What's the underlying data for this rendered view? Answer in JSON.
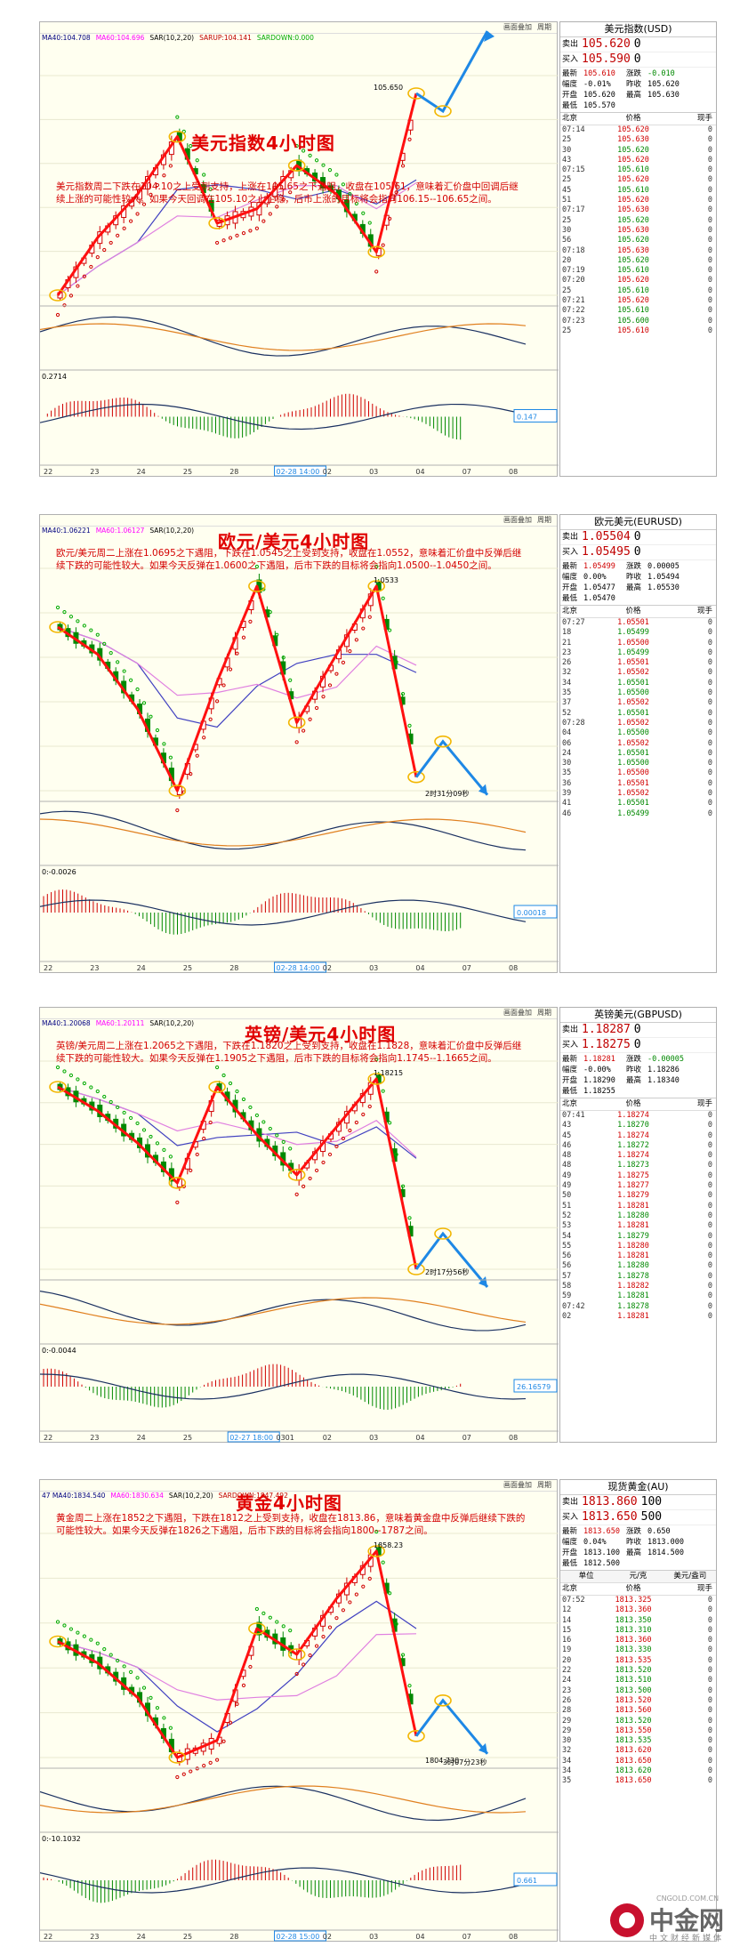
{
  "panels": [
    {
      "id": "usd",
      "title": "美元指数4小时图",
      "note": "美元指数周二下跌在104.10之上受到支持，上涨在105.65之下遇阻，收盘在105.61，意味着汇价盘中回调后继续上涨的可能性较大。如果今天回调在105.10之上企稳，后市上涨的目标将会指向106.15--106.65之间。",
      "topbar": [
        "画面叠加",
        "周期"
      ],
      "indicators": [
        "MA40:104.708",
        "MA60:104.696",
        "SAR(10,2,20)",
        "SARUP:104.141",
        "SARDOWN:0.000"
      ],
      "x_labels": [
        "22",
        "23",
        "24",
        "25",
        "28",
        "02-28 14:00",
        "02",
        "03",
        "04",
        "07",
        "08"
      ],
      "price_labels": [
        "105.650"
      ],
      "macd_label": "0.2714",
      "macd_value_box": "0.147",
      "side": {
        "title": "美元指数(USD)",
        "sell_label": "卖出",
        "sell": "105.620",
        "sell_vol": "0",
        "buy_label": "买入",
        "buy": "105.590",
        "buy_vol": "0",
        "stats": [
          [
            "最新",
            "105.610",
            "涨跌",
            "-0.010"
          ],
          [
            "幅度",
            "-0.01%",
            "昨收",
            "105.620"
          ],
          [
            "开盘",
            "105.620",
            "最高",
            "105.630"
          ],
          [
            "最低",
            "105.570",
            "",
            ""
          ]
        ],
        "tick_header": [
          "北京",
          "价格",
          "现手"
        ],
        "ticks": [
          [
            "07:14",
            "105.620",
            "0"
          ],
          [
            "25",
            "105.630",
            "0"
          ],
          [
            "30",
            "105.620",
            "0"
          ],
          [
            "43",
            "105.620",
            "0"
          ],
          [
            "07:15",
            "105.610",
            "0"
          ],
          [
            "25",
            "105.620",
            "0"
          ],
          [
            "45",
            "105.610",
            "0"
          ],
          [
            "51",
            "105.620",
            "0"
          ],
          [
            "07:17",
            "105.630",
            "0"
          ],
          [
            "25",
            "105.620",
            "0"
          ],
          [
            "30",
            "105.630",
            "0"
          ],
          [
            "56",
            "105.620",
            "0"
          ],
          [
            "07:18",
            "105.630",
            "0"
          ],
          [
            "20",
            "105.620",
            "0"
          ],
          [
            "07:19",
            "105.610",
            "0"
          ],
          [
            "07:20",
            "105.620",
            "0"
          ],
          [
            "25",
            "105.610",
            "0"
          ],
          [
            "07:21",
            "105.620",
            "0"
          ],
          [
            "07:22",
            "105.610",
            "0"
          ],
          [
            "07:23",
            "105.600",
            "0"
          ],
          [
            "25",
            "105.610",
            "0"
          ]
        ]
      }
    },
    {
      "id": "eur",
      "title": "欧元/美元4小时图",
      "note": "欧元/美元周二上涨在1.0695之下遇阻，下跌在1.0545之上受到支持，收盘在1.0552，意味着汇价盘中反弹后继续下跌的可能性较大。如果今天反弹在1.0600之下遇阻，后市下跌的目标将会指向1.0500--1.0450之间。",
      "topbar": [
        "画面叠加",
        "周期"
      ],
      "indicators": [
        "MA40:1.06221",
        "MA60:1.06127",
        "SAR(10,2,20)"
      ],
      "x_labels": [
        "22",
        "23",
        "24",
        "25",
        "28",
        "02-28 14:00",
        "02",
        "03",
        "04",
        "07",
        "08"
      ],
      "price_labels": [
        "1.0533",
        "2时31分09秒"
      ],
      "macd_label": "0:-0.0026",
      "macd_value_box": "0.00018",
      "side": {
        "title": "欧元美元(EURUSD)",
        "sell_label": "卖出",
        "sell": "1.05504",
        "sell_vol": "0",
        "buy_label": "买入",
        "buy": "1.05495",
        "buy_vol": "0",
        "stats": [
          [
            "最新",
            "1.05499",
            "涨跌",
            "0.00005"
          ],
          [
            "幅度",
            "0.00%",
            "昨收",
            "1.05494"
          ],
          [
            "开盘",
            "1.05477",
            "最高",
            "1.05530"
          ],
          [
            "最低",
            "1.05470",
            "",
            ""
          ]
        ],
        "tick_header": [
          "北京",
          "价格",
          "现手"
        ],
        "ticks": [
          [
            "07:27",
            "1.05501",
            "0"
          ],
          [
            "18",
            "1.05499",
            "0"
          ],
          [
            "21",
            "1.05500",
            "0"
          ],
          [
            "23",
            "1.05499",
            "0"
          ],
          [
            "26",
            "1.05501",
            "0"
          ],
          [
            "32",
            "1.05502",
            "0"
          ],
          [
            "34",
            "1.05501",
            "0"
          ],
          [
            "35",
            "1.05500",
            "0"
          ],
          [
            "37",
            "1.05502",
            "0"
          ],
          [
            "52",
            "1.05501",
            "0"
          ],
          [
            "07:28",
            "1.05502",
            "0"
          ],
          [
            "04",
            "1.05500",
            "0"
          ],
          [
            "06",
            "1.05502",
            "0"
          ],
          [
            "24",
            "1.05501",
            "0"
          ],
          [
            "30",
            "1.05500",
            "0"
          ],
          [
            "35",
            "1.05500",
            "0"
          ],
          [
            "36",
            "1.05501",
            "0"
          ],
          [
            "39",
            "1.05502",
            "0"
          ],
          [
            "41",
            "1.05501",
            "0"
          ],
          [
            "46",
            "1.05499",
            "0"
          ]
        ]
      }
    },
    {
      "id": "gbp",
      "title": "英镑/美元4小时图",
      "note": "英镑/美元周二上涨在1.2065之下遇阻，下跌在1.1820之上受到支持，收盘在1.1828，意味着汇价盘中反弹后继续下跌的可能性较大。如果今天反弹在1.1905之下遇阻，后市下跌的目标将会指向1.1745--1.1665之间。",
      "topbar": [
        "画面叠加",
        "周期"
      ],
      "indicators": [
        "MA40:1.20068",
        "MA60:1.20111",
        "SAR(10,2,20)"
      ],
      "x_labels": [
        "22",
        "23",
        "24",
        "25",
        "02-27 18:00",
        "0301",
        "02",
        "03",
        "04",
        "07",
        "08"
      ],
      "price_labels": [
        "1.18215",
        "2时17分56秒"
      ],
      "macd_label": "0:-0.0044",
      "macd_value_box": "26.16579",
      "side": {
        "title": "英镑美元(GBPUSD)",
        "sell_label": "卖出",
        "sell": "1.18287",
        "sell_vol": "0",
        "buy_label": "买入",
        "buy": "1.18275",
        "buy_vol": "0",
        "stats": [
          [
            "最新",
            "1.18281",
            "涨跌",
            "-0.00005"
          ],
          [
            "幅度",
            "-0.00%",
            "昨收",
            "1.18286"
          ],
          [
            "开盘",
            "1.18290",
            "最高",
            "1.18340"
          ],
          [
            "最低",
            "1.18255",
            "",
            ""
          ]
        ],
        "tick_header": [
          "北京",
          "价格",
          "现手"
        ],
        "ticks": [
          [
            "07:41",
            "1.18274",
            "0"
          ],
          [
            "43",
            "1.18270",
            "0"
          ],
          [
            "45",
            "1.18274",
            "0"
          ],
          [
            "46",
            "1.18272",
            "0"
          ],
          [
            "48",
            "1.18274",
            "0"
          ],
          [
            "48",
            "1.18273",
            "0"
          ],
          [
            "49",
            "1.18275",
            "0"
          ],
          [
            "49",
            "1.18277",
            "0"
          ],
          [
            "50",
            "1.18279",
            "0"
          ],
          [
            "51",
            "1.18281",
            "0"
          ],
          [
            "52",
            "1.18280",
            "0"
          ],
          [
            "53",
            "1.18281",
            "0"
          ],
          [
            "54",
            "1.18279",
            "0"
          ],
          [
            "55",
            "1.18280",
            "0"
          ],
          [
            "56",
            "1.18281",
            "0"
          ],
          [
            "56",
            "1.18280",
            "0"
          ],
          [
            "57",
            "1.18278",
            "0"
          ],
          [
            "58",
            "1.18282",
            "0"
          ],
          [
            "59",
            "1.18281",
            "0"
          ],
          [
            "07:42",
            "1.18278",
            "0"
          ],
          [
            "02",
            "1.18281",
            "0"
          ]
        ]
      }
    },
    {
      "id": "xau",
      "title": "黄金4小时图",
      "note": "黄金周二上涨在1852之下遇阻，下跌在1812之上受到支持，收盘在1813.86，意味着黄金盘中反弹后继续下跌的可能性较大。如果今天反弹在1826之下遇阻，后市下跌的目标将会指向1800--1787之间。",
      "topbar": [
        "画面叠加",
        "周期"
      ],
      "indicators": [
        "47 MA40:1834.540",
        "MA60:1830.634",
        "SAR(10,2,20)",
        "SARDOWN:1847.492"
      ],
      "x_labels": [
        "22",
        "23",
        "24",
        "25",
        "28",
        "02-28 15:00",
        "02",
        "03",
        "04",
        "07",
        "08"
      ],
      "price_labels": [
        "1858.23",
        "1804.730",
        "3时07分23秒"
      ],
      "macd_label": "0:-10.1032",
      "macd_value_box": "0.661",
      "side": {
        "title": "现货黄金(AU)",
        "sell_label": "卖出",
        "sell": "1813.860",
        "sell_vol": "100",
        "buy_label": "买入",
        "buy": "1813.650",
        "buy_vol": "500",
        "stats": [
          [
            "最新",
            "1813.650",
            "涨跌",
            "0.650"
          ],
          [
            "幅度",
            "0.04%",
            "昨收",
            "1813.000"
          ],
          [
            "开盘",
            "1813.100",
            "最高",
            "1814.500"
          ],
          [
            "最低",
            "1812.500",
            "",
            ""
          ]
        ],
        "unit_row": [
          "单位",
          "元/克",
          "美元/盎司"
        ],
        "tick_header": [
          "北京",
          "价格",
          "现手"
        ],
        "ticks": [
          [
            "07:52",
            "1813.325",
            "0"
          ],
          [
            "12",
            "1813.360",
            "0"
          ],
          [
            "14",
            "1813.350",
            "0"
          ],
          [
            "15",
            "1813.310",
            "0"
          ],
          [
            "16",
            "1813.360",
            "0"
          ],
          [
            "19",
            "1813.330",
            "0"
          ],
          [
            "20",
            "1813.535",
            "0"
          ],
          [
            "22",
            "1813.520",
            "0"
          ],
          [
            "24",
            "1813.510",
            "0"
          ],
          [
            "23",
            "1813.500",
            "0"
          ],
          [
            "26",
            "1813.520",
            "0"
          ],
          [
            "28",
            "1813.560",
            "0"
          ],
          [
            "29",
            "1813.520",
            "0"
          ],
          [
            "29",
            "1813.550",
            "0"
          ],
          [
            "30",
            "1813.535",
            "0"
          ],
          [
            "32",
            "1813.620",
            "0"
          ],
          [
            "34",
            "1813.650",
            "0"
          ],
          [
            "34",
            "1813.620",
            "0"
          ],
          [
            "35",
            "1813.650",
            "0"
          ]
        ]
      }
    }
  ],
  "chart_data": [
    {
      "type": "line",
      "title": "美元指数4小时图",
      "x": [
        "22",
        "23",
        "24",
        "25",
        "28",
        "02",
        "03",
        "04",
        "07",
        "08"
      ],
      "series": [
        {
          "values": [
            104.2,
            104.6,
            104.9,
            105.3,
            104.7,
            104.8,
            105.1,
            104.9,
            104.5,
            105.6
          ]
        }
      ],
      "annotations": [
        "105.650"
      ]
    },
    {
      "type": "line",
      "title": "欧元/美元4小时图",
      "x": [
        "22",
        "23",
        "24",
        "25",
        "28",
        "02",
        "03",
        "04",
        "07",
        "08"
      ],
      "series": [
        {
          "values": [
            1.066,
            1.064,
            1.06,
            1.054,
            1.062,
            1.069,
            1.059,
            1.064,
            1.069,
            1.055
          ]
        }
      ],
      "annotations": [
        "1.0533"
      ]
    },
    {
      "type": "line",
      "title": "英镑/美元4小时图",
      "x": [
        "22",
        "23",
        "24",
        "25",
        "0301",
        "02",
        "03",
        "04",
        "07",
        "08"
      ],
      "series": [
        {
          "values": [
            1.205,
            1.202,
            1.198,
            1.193,
            1.205,
            1.199,
            1.194,
            1.2,
            1.206,
            1.1822
          ]
        }
      ],
      "annotations": [
        "1.18215"
      ]
    },
    {
      "type": "line",
      "title": "黄金4小时图",
      "x": [
        "22",
        "23",
        "24",
        "25",
        "28",
        "02",
        "03",
        "04",
        "07",
        "08"
      ],
      "series": [
        {
          "values": [
            1835,
            1830,
            1822,
            1808,
            1812,
            1838,
            1832,
            1845,
            1856,
            1813
          ]
        }
      ],
      "annotations": [
        "1858.23",
        "1804.730"
      ]
    }
  ],
  "brand": {
    "name": "中金网",
    "domain": "CNGOLD.COM.CN",
    "slogan": "中文财经新媒体"
  },
  "colors": {
    "accent": "#e00000",
    "up": "#d00000",
    "down": "#008800",
    "arrow": "#1e88e5",
    "circle": "#f2b600"
  }
}
